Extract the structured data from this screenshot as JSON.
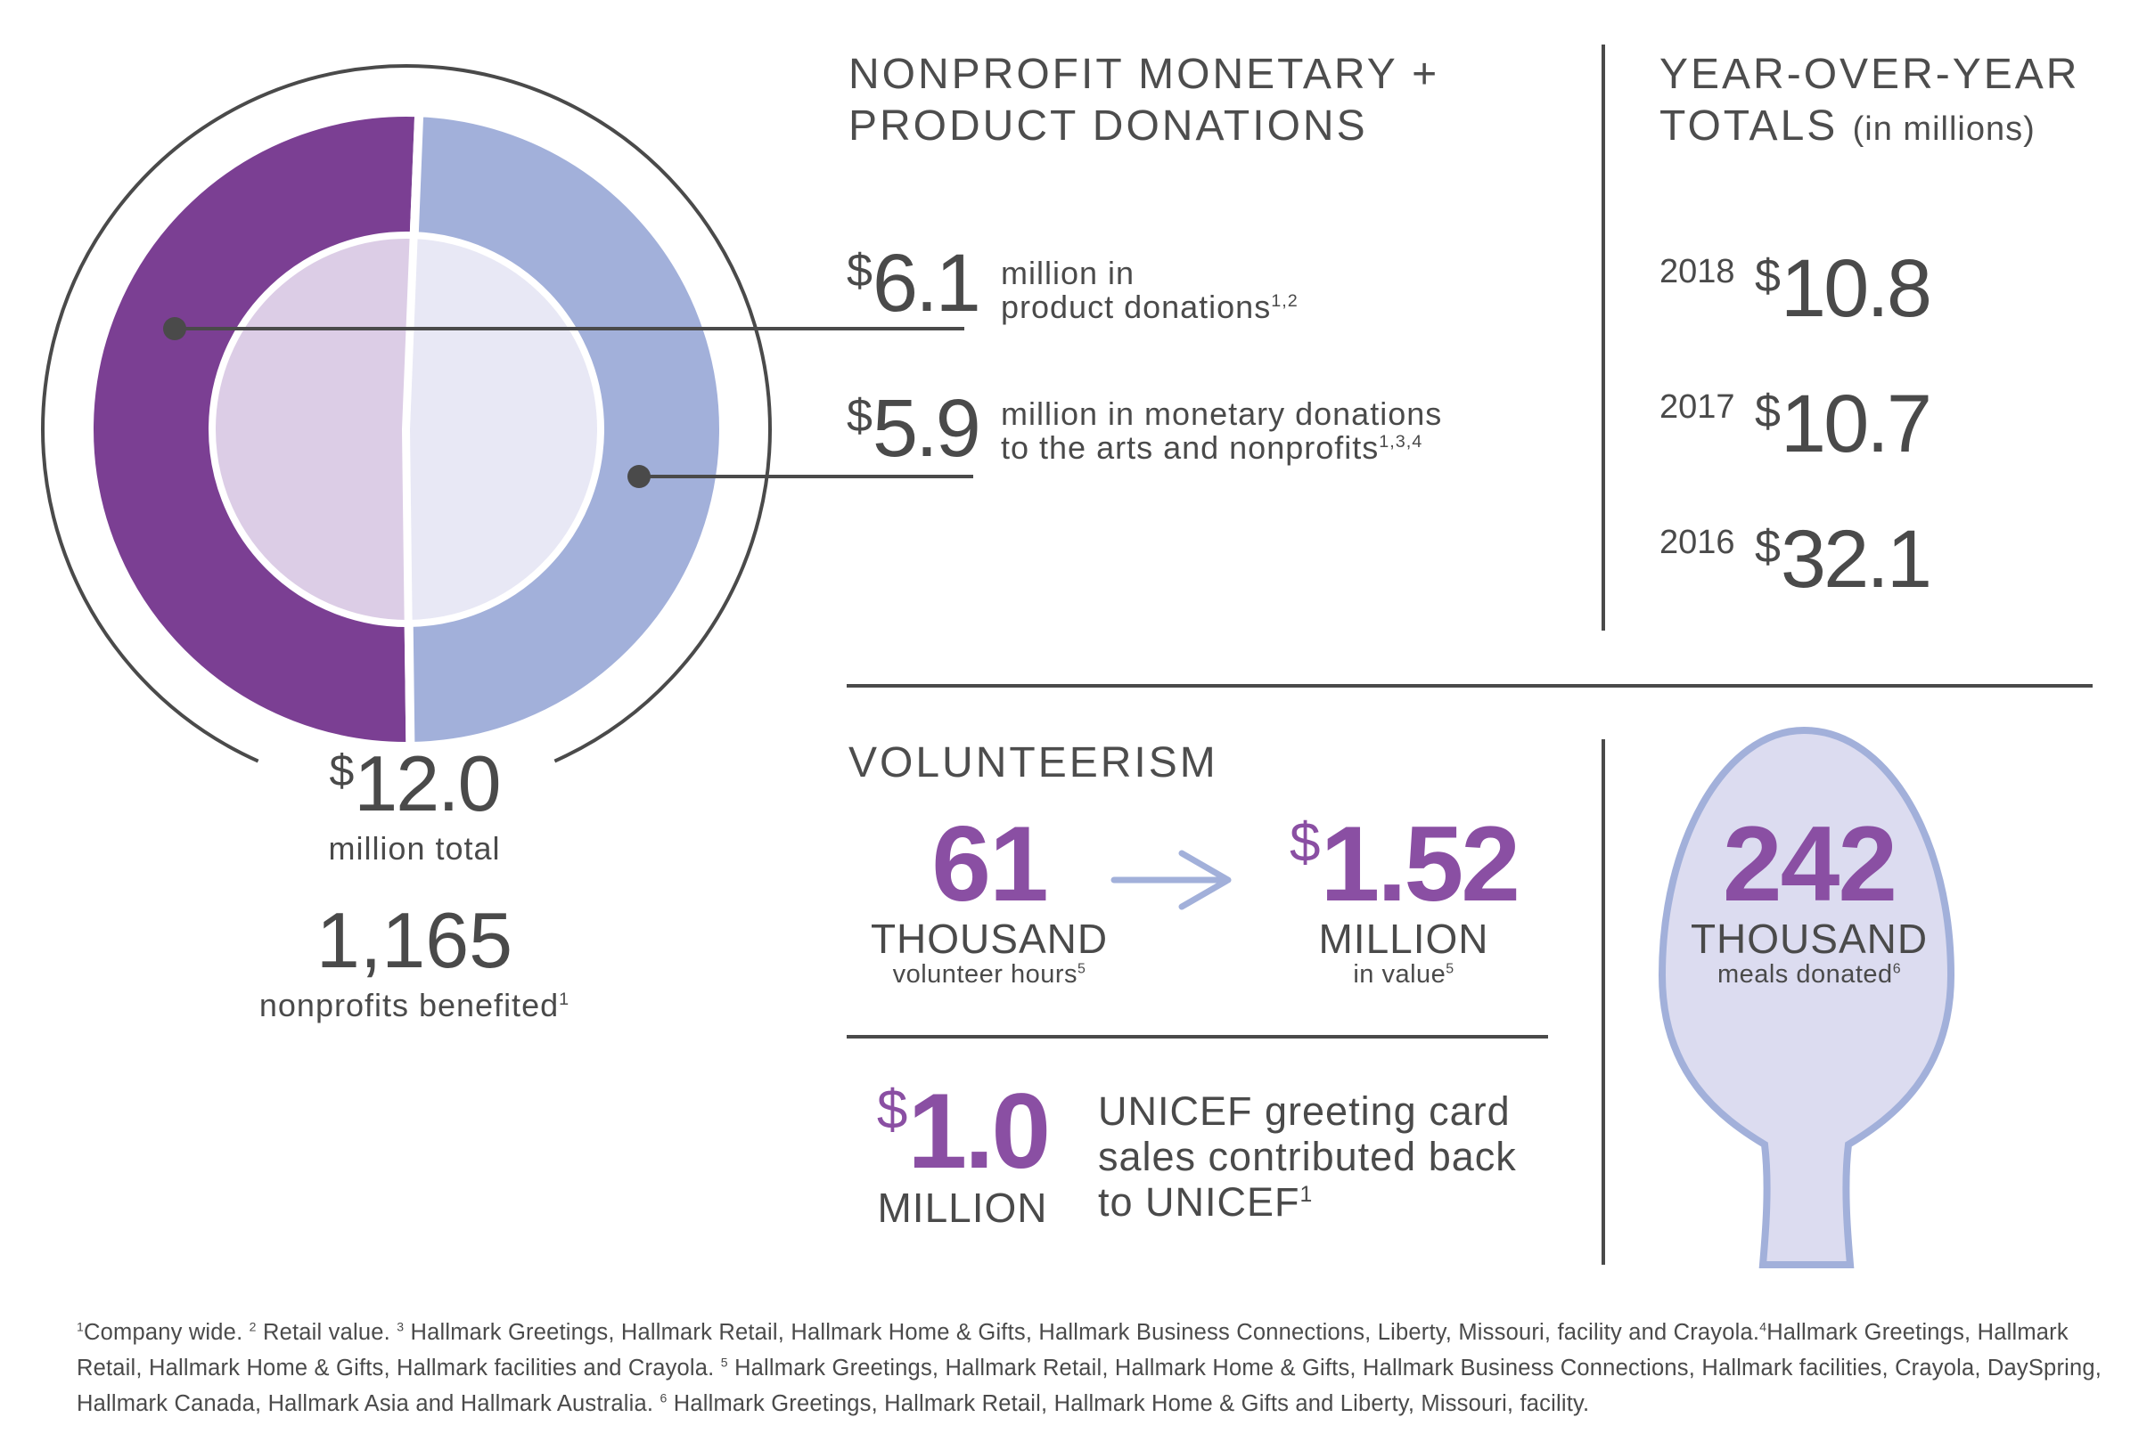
{
  "chart_data": {
    "type": "pie",
    "title": "",
    "categories": [
      "product donations",
      "monetary donations"
    ],
    "values": [
      6.1,
      5.9
    ],
    "units": "$ millions",
    "colors": {
      "product_outer": "#7b3f93",
      "product_inner": "#dccde6",
      "monetary_outer": "#a2b0da",
      "monetary_inner": "#e8e8f5",
      "outline": "#4a4a4a"
    }
  },
  "donut": {
    "total_amount": "12.0",
    "total_label": "million total",
    "nonprofits_count": "1,165",
    "nonprofits_label": "nonprofits benefited",
    "nonprofits_sup": "1"
  },
  "donations": {
    "heading_line1": "NONPROFIT MONETARY +",
    "heading_line2": "PRODUCT DONATIONS",
    "product_amount": "6.1",
    "product_line1": "million in",
    "product_line2": "product donations",
    "product_sup": "1,2",
    "monetary_amount": "5.9",
    "monetary_line1": "million in monetary donations",
    "monetary_line2": "to the arts and nonprofits",
    "monetary_sup": "1,3,4"
  },
  "yoy": {
    "heading_line1": "YEAR-OVER-YEAR",
    "heading_line2": "TOTALS",
    "heading_unit": "(in millions)",
    "rows": [
      {
        "year": "2018",
        "amount": "10.8"
      },
      {
        "year": "2017",
        "amount": "10.7"
      },
      {
        "year": "2016",
        "amount": "32.1"
      }
    ]
  },
  "volunteerism": {
    "heading": "VOLUNTEERISM",
    "hours_value": "61",
    "hours_unit": "THOUSAND",
    "hours_label": "volunteer hours",
    "hours_sup": "5",
    "value_amount": "1.52",
    "value_unit": "MILLION",
    "value_label": "in value",
    "value_sup": "5"
  },
  "unicef": {
    "amount": "1.0",
    "unit": "MILLION",
    "line1": "UNICEF greeting card",
    "line2": "sales contributed back",
    "line3": "to UNICEF",
    "sup": "1"
  },
  "meals": {
    "value": "242",
    "unit": "THOUSAND",
    "label": "meals donated",
    "sup": "6"
  },
  "dollar_sign": "$",
  "footnotes": {
    "n1": "1",
    "t1": "Company wide.",
    "n2": "2",
    "t2": "Retail value.",
    "n3": "3",
    "t3": "Hallmark Greetings, Hallmark Retail, Hallmark Home & Gifts, Hallmark Business Connections, Liberty, Missouri, facility and Crayola.",
    "n4": "4",
    "t4": "Hallmark Greetings, Hallmark Retail, Hallmark Home & Gifts, Hallmark facilities and Crayola.",
    "n5": "5",
    "t5": "Hallmark Greetings, Hallmark Retail, Hallmark Home & Gifts, Hallmark Business Connections, Hallmark facilities, Crayola, DaySpring, Hallmark Canada, Hallmark Asia and Hallmark Australia.",
    "n6": "6",
    "t6": "Hallmark Greetings, Hallmark Retail, Hallmark Home & Gifts and Liberty, Missouri, facility."
  }
}
